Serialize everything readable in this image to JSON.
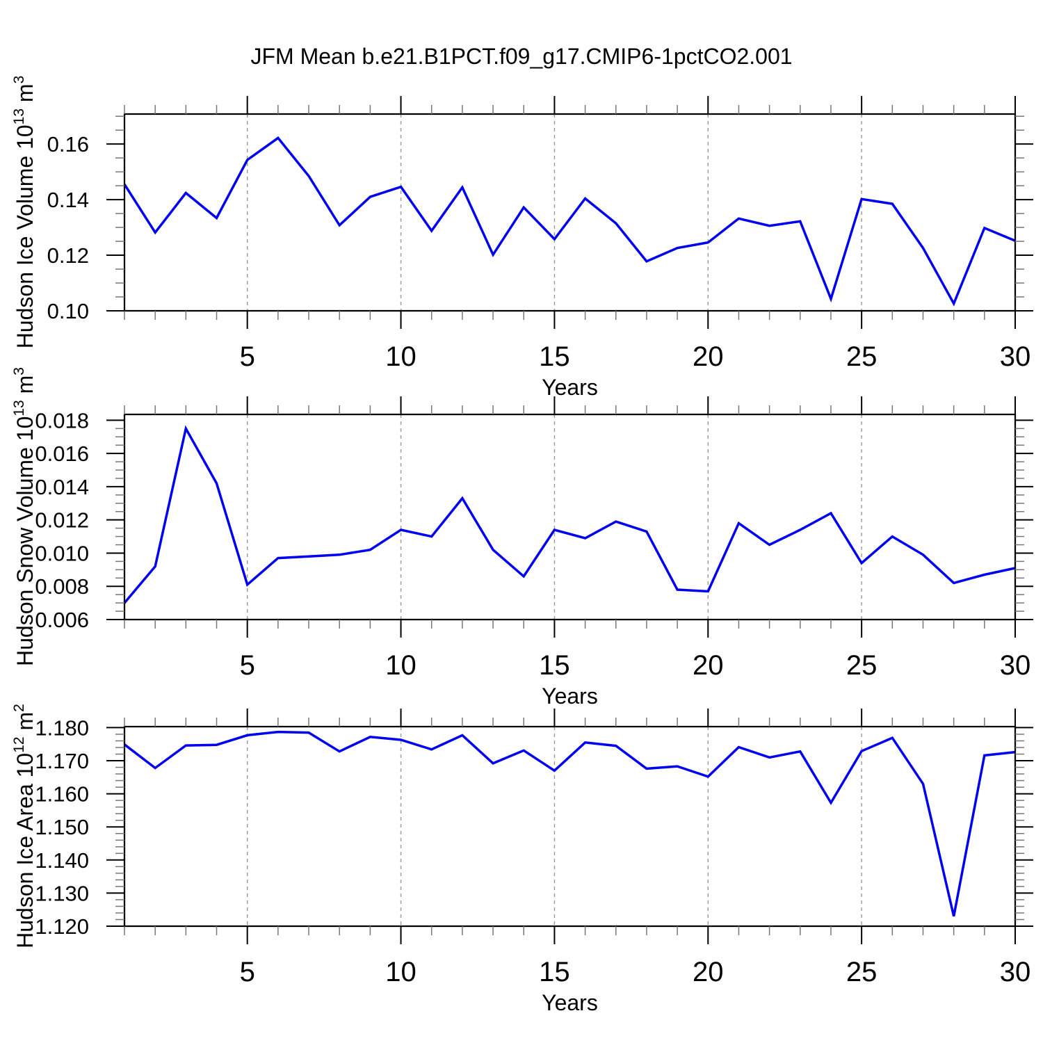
{
  "title": "JFM Mean b.e21.B1PCT.f09_g17.CMIP6-1pctCO2.001",
  "style": {
    "line_color": "#0000f0",
    "grid_color": "#999999",
    "axis_color": "#000000",
    "minor_tick_color": "#777777"
  },
  "chart_data": [
    {
      "type": "line",
      "name": "hudson-ice-volume",
      "title": "",
      "xlabel": "Years",
      "ylabel": {
        "prefix": "Hudson Ice Volume 10",
        "exp": "13",
        "unit": " m",
        "unit_exp": "3"
      },
      "xlim": [
        1,
        30
      ],
      "ylim": [
        0.1,
        0.1708
      ],
      "x_major_ticks": [
        5,
        10,
        15,
        20,
        25,
        30
      ],
      "x_gridlines": [
        5,
        10,
        15,
        20,
        25
      ],
      "x_minor_step": 1,
      "y_major_ticks": [
        {
          "v": 0.1,
          "label": "0.10"
        },
        {
          "v": 0.12,
          "label": "0.12"
        },
        {
          "v": 0.14,
          "label": "0.14"
        },
        {
          "v": 0.16,
          "label": "0.16"
        }
      ],
      "y_minor_step": 0.005,
      "x": [
        1,
        2,
        3,
        4,
        5,
        6,
        7,
        8,
        9,
        10,
        11,
        12,
        13,
        14,
        15,
        16,
        17,
        18,
        19,
        20,
        21,
        22,
        23,
        24,
        25,
        26,
        27,
        28,
        29,
        30
      ],
      "values": [
        0.1455,
        0.1282,
        0.1424,
        0.1334,
        0.1543,
        0.1622,
        0.1485,
        0.1308,
        0.141,
        0.1446,
        0.1288,
        0.1444,
        0.1202,
        0.1372,
        0.1258,
        0.1404,
        0.1315,
        0.1178,
        0.1226,
        0.1246,
        0.1332,
        0.1306,
        0.1322,
        0.1043,
        0.1402,
        0.1385,
        0.1226,
        0.1026,
        0.1298,
        0.1252
      ]
    },
    {
      "type": "line",
      "name": "hudson-snow-volume",
      "title": "",
      "xlabel": "Years",
      "ylabel": {
        "prefix": "Hudson Snow Volume 10",
        "exp": "13",
        "unit": " m",
        "unit_exp": "3"
      },
      "xlim": [
        1,
        30
      ],
      "ylim": [
        0.006,
        0.01835
      ],
      "x_major_ticks": [
        5,
        10,
        15,
        20,
        25,
        30
      ],
      "x_gridlines": [
        5,
        10,
        15,
        20,
        25
      ],
      "x_minor_step": 1,
      "y_major_ticks": [
        {
          "v": 0.006,
          "label": "0.006"
        },
        {
          "v": 0.008,
          "label": "0.008"
        },
        {
          "v": 0.01,
          "label": "0.010"
        },
        {
          "v": 0.012,
          "label": "0.012"
        },
        {
          "v": 0.014,
          "label": "0.014"
        },
        {
          "v": 0.016,
          "label": "0.016"
        },
        {
          "v": 0.018,
          "label": "0.018"
        }
      ],
      "y_minor_step": 0.0005,
      "x": [
        1,
        2,
        3,
        4,
        5,
        6,
        7,
        8,
        9,
        10,
        11,
        12,
        13,
        14,
        15,
        16,
        17,
        18,
        19,
        20,
        21,
        22,
        23,
        24,
        25,
        26,
        27,
        28,
        29,
        30
      ],
      "values": [
        0.007,
        0.0092,
        0.0175,
        0.0142,
        0.0081,
        0.0097,
        0.0098,
        0.0099,
        0.0102,
        0.0114,
        0.011,
        0.0133,
        0.0102,
        0.0086,
        0.0114,
        0.0109,
        0.0119,
        0.0113,
        0.0078,
        0.0077,
        0.0118,
        0.0105,
        0.0114,
        0.0124,
        0.0094,
        0.011,
        0.0099,
        0.0082,
        0.0087,
        0.0091
      ]
    },
    {
      "type": "line",
      "name": "hudson-ice-area",
      "title": "",
      "xlabel": "Years",
      "ylabel": {
        "prefix": "Hudson Ice Area 10",
        "exp": "12",
        "unit": " m",
        "unit_exp": "2"
      },
      "xlim": [
        1,
        30
      ],
      "ylim": [
        1.12,
        1.1803
      ],
      "x_major_ticks": [
        5,
        10,
        15,
        20,
        25,
        30
      ],
      "x_gridlines": [
        5,
        10,
        15,
        20,
        25
      ],
      "x_minor_step": 1,
      "y_major_ticks": [
        {
          "v": 1.12,
          "label": "1.120"
        },
        {
          "v": 1.13,
          "label": "1.130"
        },
        {
          "v": 1.14,
          "label": "1.140"
        },
        {
          "v": 1.15,
          "label": "1.150"
        },
        {
          "v": 1.16,
          "label": "1.160"
        },
        {
          "v": 1.17,
          "label": "1.170"
        },
        {
          "v": 1.18,
          "label": "1.180"
        }
      ],
      "y_minor_step": 0.002,
      "x": [
        1,
        2,
        3,
        4,
        5,
        6,
        7,
        8,
        9,
        10,
        11,
        12,
        13,
        14,
        15,
        16,
        17,
        18,
        19,
        20,
        21,
        22,
        23,
        24,
        25,
        26,
        27,
        28,
        29,
        30
      ],
      "values": [
        1.1749,
        1.1678,
        1.1746,
        1.1748,
        1.1777,
        1.1787,
        1.1785,
        1.1728,
        1.1772,
        1.1763,
        1.1734,
        1.1777,
        1.1692,
        1.1731,
        1.167,
        1.1755,
        1.1745,
        1.1676,
        1.1683,
        1.1652,
        1.1741,
        1.171,
        1.1728,
        1.1573,
        1.1729,
        1.1769,
        1.163,
        1.123,
        1.1716,
        1.1726
      ]
    }
  ]
}
